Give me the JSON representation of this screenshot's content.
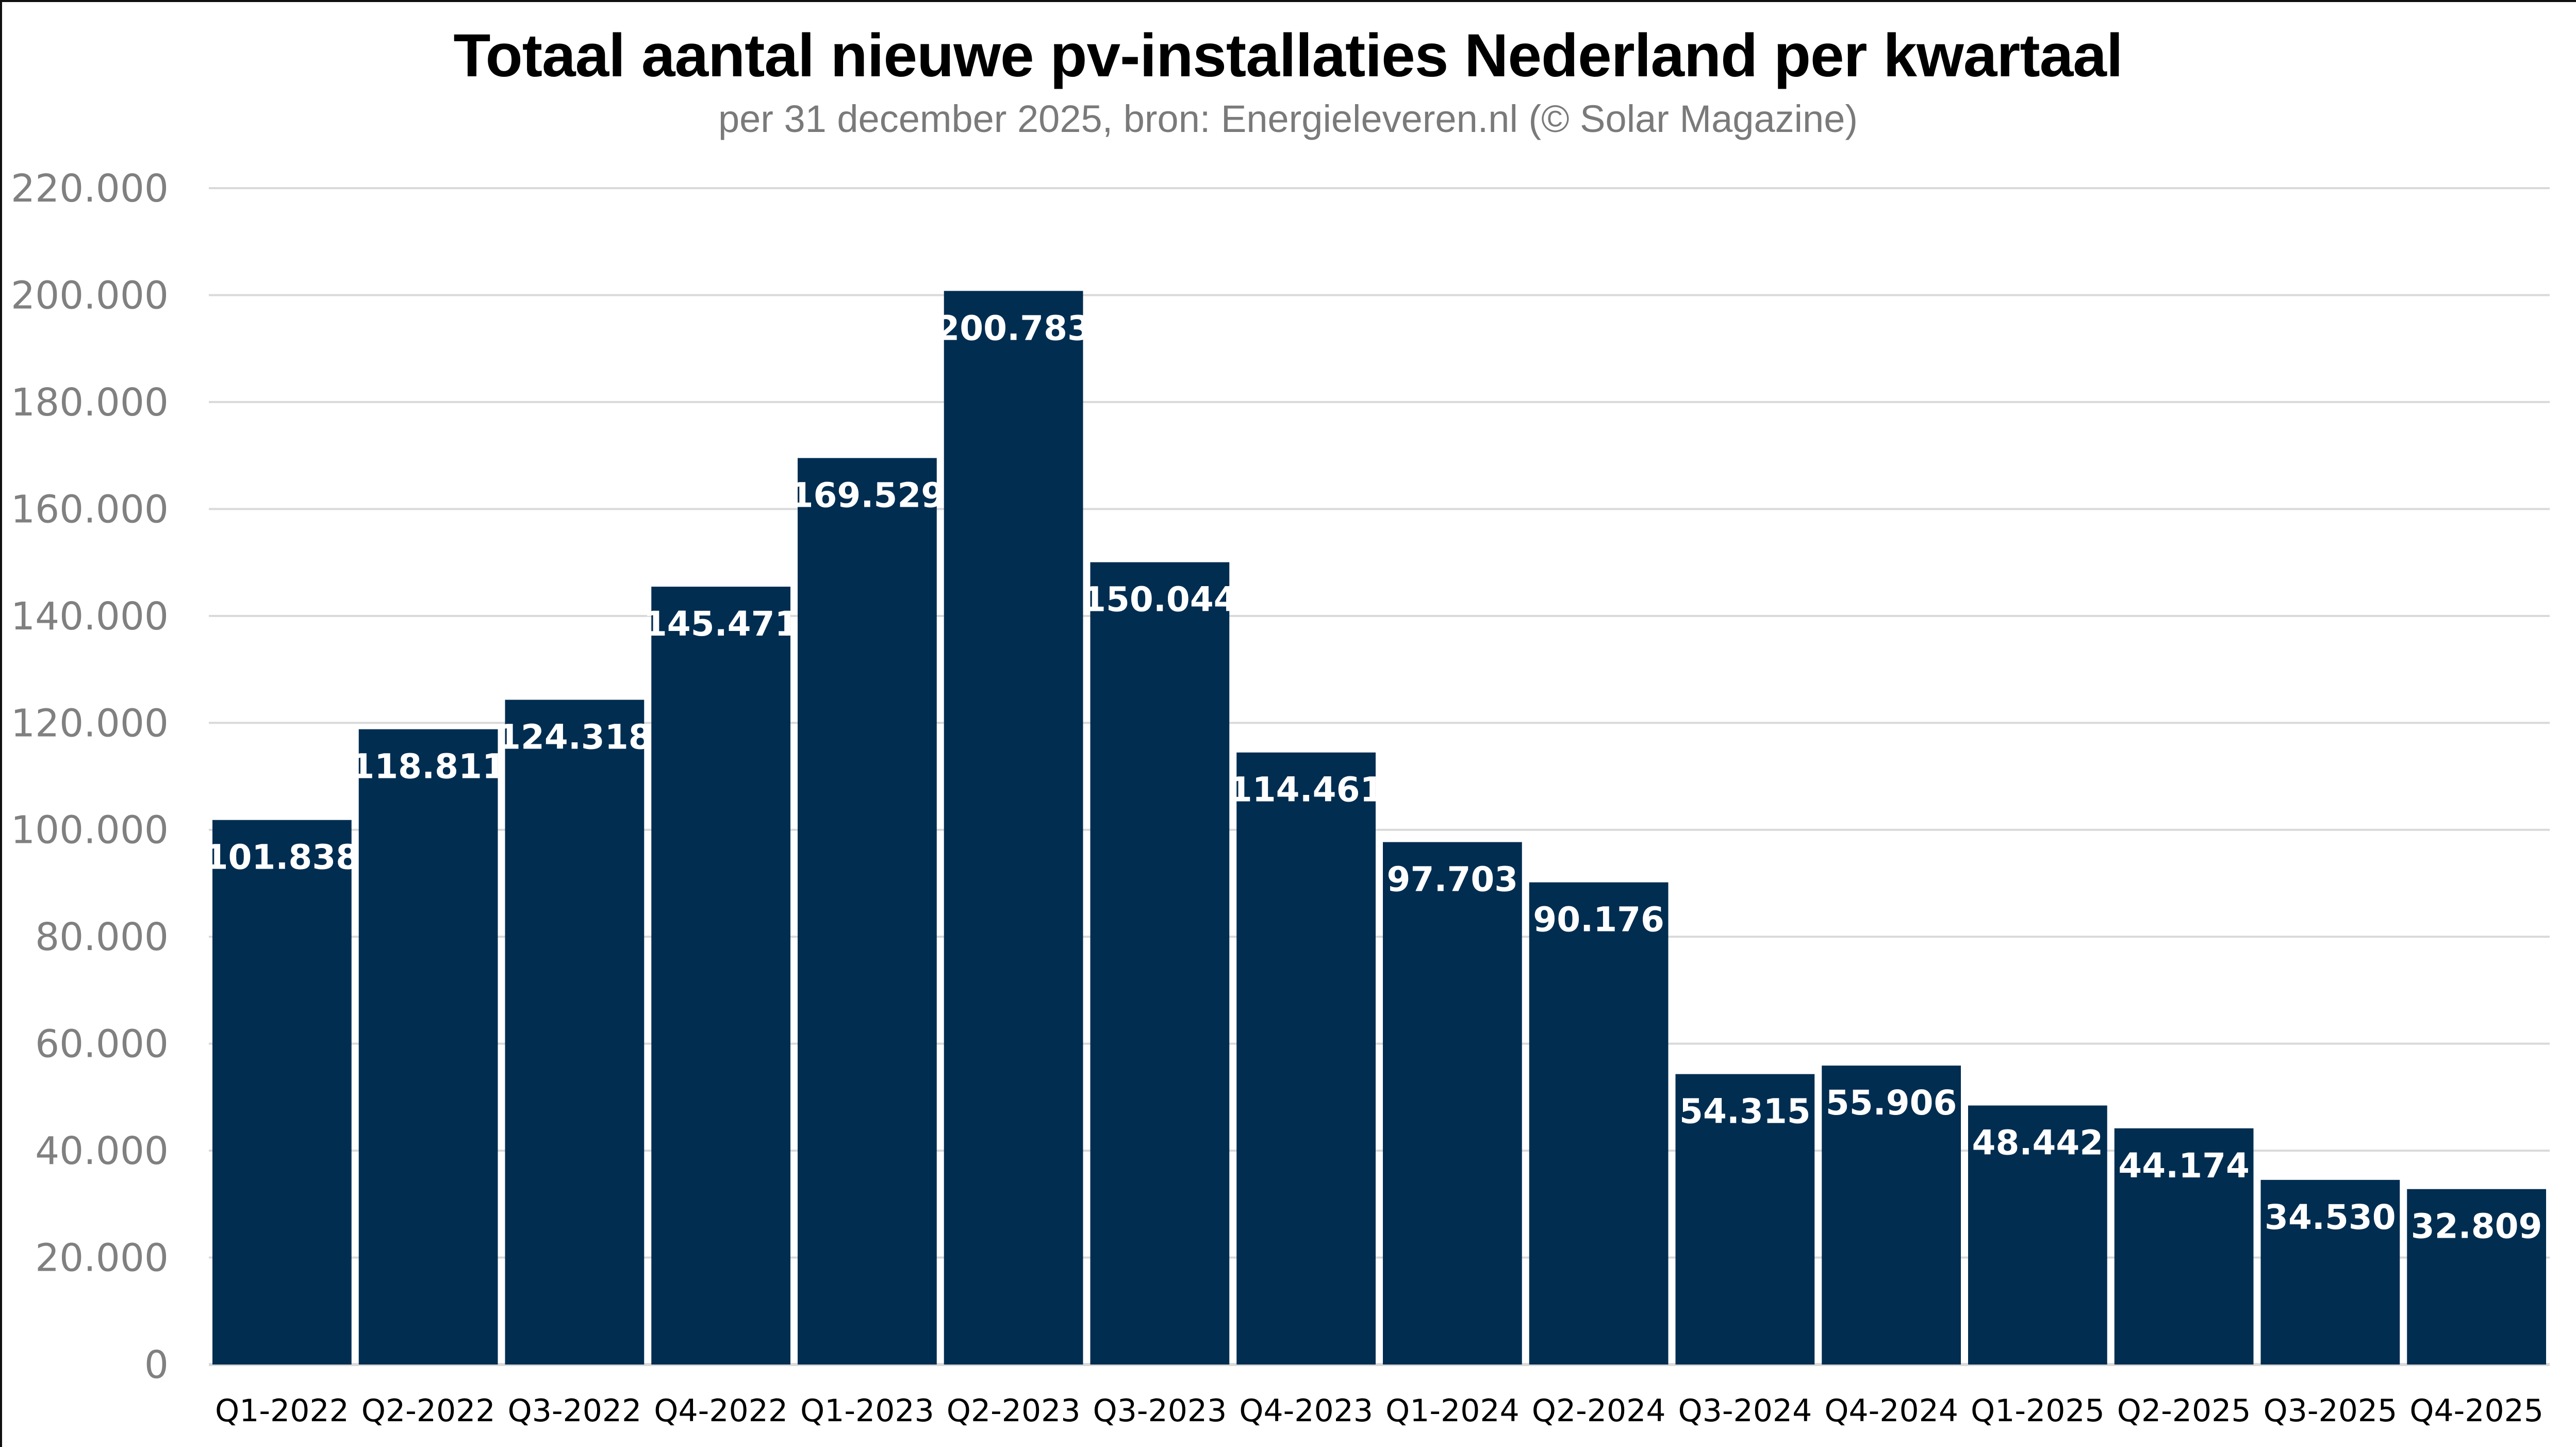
{
  "chart_data": {
    "type": "bar",
    "title": "Totaal aantal nieuwe pv-installaties Nederland per kwartaal",
    "subtitle": "per 31 december 2025, bron: Energieleveren.nl (© Solar Magazine)",
    "xlabel": "",
    "ylabel": "",
    "ylim": [
      0,
      220000
    ],
    "yticks": [
      0,
      20000,
      40000,
      60000,
      80000,
      100000,
      120000,
      140000,
      160000,
      180000,
      200000,
      220000
    ],
    "ytick_labels": [
      "0",
      "20.000",
      "40.000",
      "60.000",
      "80.000",
      "100.000",
      "120.000",
      "140.000",
      "160.000",
      "180.000",
      "200.000",
      "220.000"
    ],
    "grid": true,
    "legend": "none",
    "bar_color": "#012D51",
    "grid_color": "#D9D9D9",
    "categories": [
      "Q1-2022",
      "Q2-2022",
      "Q3-2022",
      "Q4-2022",
      "Q1-2023",
      "Q2-2023",
      "Q3-2023",
      "Q4-2023",
      "Q1-2024",
      "Q2-2024",
      "Q3-2024",
      "Q4-2024",
      "Q1-2025",
      "Q2-2025",
      "Q3-2025",
      "Q4-2025"
    ],
    "values": [
      101838,
      118811,
      124318,
      145471,
      169529,
      200783,
      150044,
      114461,
      97703,
      90176,
      54315,
      55906,
      48442,
      44174,
      34530,
      32809
    ],
    "data_labels": [
      "101.838",
      "118.811",
      "124.318",
      "145.471",
      "169.529",
      "200.783",
      "150.044",
      "114.461",
      "97.703",
      "90.176",
      "54.315",
      "55.906",
      "48.442",
      "44.174",
      "34.530",
      "32.809"
    ]
  }
}
